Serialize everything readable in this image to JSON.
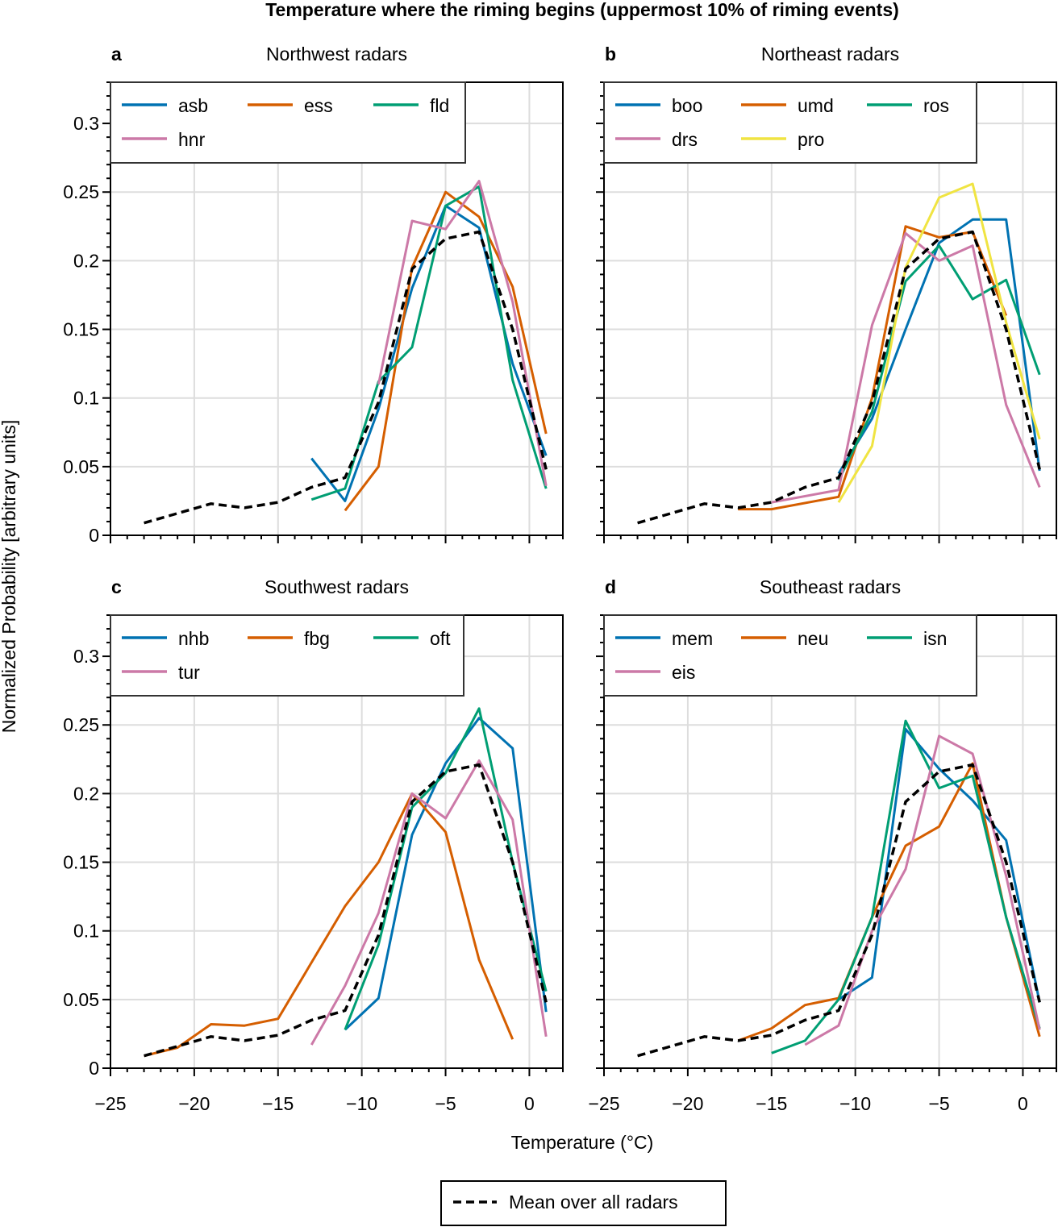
{
  "chart_data": {
    "type": "line",
    "title": "Temperature where the riming begins (uppermost 10% of riming events)",
    "xlabel": "Temperature (°C)",
    "ylabel": "Normalized Probability [arbitrary units]",
    "xlim": [
      -25,
      2
    ],
    "ylim": [
      0,
      0.33
    ],
    "xticks": [
      "−25",
      "−20",
      "−15",
      "−10",
      "−5",
      "0"
    ],
    "xtick_values": [
      -25,
      -20,
      -15,
      -10,
      -5,
      0
    ],
    "yticks": [
      "0",
      "0.05",
      "0.1",
      "0.15",
      "0.2",
      "0.25",
      "0.3"
    ],
    "ytick_values": [
      0,
      0.05,
      0.1,
      0.15,
      0.2,
      0.25,
      0.3
    ],
    "grid": true,
    "mean": {
      "name": "Mean over all radars",
      "color": "#000000",
      "x": [
        -23,
        -21,
        -19,
        -17,
        -15,
        -13,
        -11,
        -9,
        -7,
        -5,
        -3,
        -1,
        1
      ],
      "y": [
        0.009,
        0.016,
        0.023,
        0.02,
        0.024,
        0.035,
        0.042,
        0.097,
        0.194,
        0.216,
        0.221,
        0.15,
        0.048
      ]
    },
    "legend_bottom": "Mean over all radars",
    "panels": [
      {
        "label": "a",
        "title": "Northwest radars",
        "legend_placement": "top-left",
        "series": [
          {
            "name": "asb",
            "color": "#0072B2",
            "x": [
              -13,
              -11,
              -9,
              -7,
              -5,
              -3,
              -1,
              1
            ],
            "y": [
              0.056,
              0.025,
              0.092,
              0.18,
              0.24,
              0.224,
              0.125,
              0.058
            ]
          },
          {
            "name": "ess",
            "color": "#D55E00",
            "x": [
              -11,
              -9,
              -7,
              -5,
              -3,
              -1,
              1
            ],
            "y": [
              0.018,
              0.05,
              0.195,
              0.25,
              0.232,
              0.181,
              0.074
            ]
          },
          {
            "name": "fld",
            "color": "#009E73",
            "x": [
              -13,
              -11,
              -9,
              -7,
              -5,
              -3,
              -1,
              1
            ],
            "y": [
              0.026,
              0.034,
              0.112,
              0.137,
              0.24,
              0.254,
              0.113,
              0.034
            ]
          },
          {
            "name": "hnr",
            "color": "#CC79A7",
            "x": [
              -9,
              -7,
              -5,
              -3,
              -1,
              1
            ],
            "y": [
              0.11,
              0.229,
              0.223,
              0.258,
              0.17,
              0.036
            ]
          }
        ]
      },
      {
        "label": "b",
        "title": "Northeast radars",
        "legend_placement": "top-left",
        "series": [
          {
            "name": "boo",
            "color": "#0072B2",
            "x": [
              -11,
              -9,
              -7,
              -5,
              -3,
              -1,
              1
            ],
            "y": [
              0.045,
              0.085,
              0.15,
              0.213,
              0.23,
              0.23,
              0.047
            ]
          },
          {
            "name": "umd",
            "color": "#D55E00",
            "x": [
              -17,
              -15,
              -11,
              -9,
              -7,
              -5,
              -3,
              -1
            ],
            "y": [
              0.019,
              0.019,
              0.028,
              0.1,
              0.225,
              0.217,
              0.221,
              0.16
            ]
          },
          {
            "name": "ros",
            "color": "#009E73",
            "x": [
              -11,
              -9,
              -7,
              -5,
              -3,
              -1,
              1
            ],
            "y": [
              0.04,
              0.09,
              0.185,
              0.211,
              0.172,
              0.186,
              0.117
            ]
          },
          {
            "name": "drs",
            "color": "#CC79A7",
            "x": [
              -15,
              -11,
              -9,
              -7,
              -5,
              -3,
              -1,
              1
            ],
            "y": [
              0.024,
              0.033,
              0.153,
              0.22,
              0.2,
              0.211,
              0.095,
              0.035
            ]
          },
          {
            "name": "pro",
            "color": "#F0E442",
            "x": [
              -11,
              -9,
              -7,
              -5,
              -3,
              -1,
              1
            ],
            "y": [
              0.024,
              0.065,
              0.195,
              0.246,
              0.256,
              0.155,
              0.07
            ]
          }
        ]
      },
      {
        "label": "c",
        "title": "Southwest radars",
        "legend_placement": "top-left",
        "series": [
          {
            "name": "nhb",
            "color": "#0072B2",
            "x": [
              -11,
              -9,
              -7,
              -5,
              -3,
              -1,
              1
            ],
            "y": [
              0.028,
              0.051,
              0.17,
              0.222,
              0.255,
              0.233,
              0.041
            ]
          },
          {
            "name": "fbg",
            "color": "#D55E00",
            "x": [
              -23,
              -21,
              -19,
              -17,
              -15,
              -13,
              -11,
              -9,
              -7,
              -5,
              -3,
              -1
            ],
            "y": [
              0.009,
              0.015,
              0.032,
              0.031,
              0.036,
              0.077,
              0.118,
              0.15,
              0.2,
              0.172,
              0.079,
              0.021
            ]
          },
          {
            "name": "oft",
            "color": "#009E73",
            "x": [
              -11,
              -9,
              -7,
              -5,
              -3,
              -1,
              1
            ],
            "y": [
              0.028,
              0.09,
              0.19,
              0.215,
              0.262,
              0.15,
              0.056
            ]
          },
          {
            "name": "tur",
            "color": "#CC79A7",
            "x": [
              -13,
              -11,
              -9,
              -7,
              -5,
              -3,
              -1,
              1
            ],
            "y": [
              0.017,
              0.06,
              0.113,
              0.2,
              0.182,
              0.224,
              0.181,
              0.023
            ]
          }
        ]
      },
      {
        "label": "d",
        "title": "Southeast radars",
        "legend_placement": "top-left",
        "series": [
          {
            "name": "mem",
            "color": "#0072B2",
            "x": [
              -11,
              -9,
              -7,
              -5,
              -3,
              -1,
              1
            ],
            "y": [
              0.05,
              0.066,
              0.247,
              0.218,
              0.195,
              0.166,
              0.048
            ]
          },
          {
            "name": "neu",
            "color": "#D55E00",
            "x": [
              -17,
              -15,
              -13,
              -11,
              -9,
              -7,
              -5,
              -3,
              -1,
              1
            ],
            "y": [
              0.02,
              0.029,
              0.046,
              0.051,
              0.11,
              0.162,
              0.176,
              0.222,
              0.11,
              0.023
            ]
          },
          {
            "name": "isn",
            "color": "#009E73",
            "x": [
              -15,
              -13,
              -11,
              -9,
              -7,
              -5,
              -3,
              -1,
              1
            ],
            "y": [
              0.011,
              0.02,
              0.05,
              0.11,
              0.253,
              0.204,
              0.213,
              0.11,
              0.029
            ]
          },
          {
            "name": "eis",
            "color": "#CC79A7",
            "x": [
              -13,
              -11,
              -9,
              -7,
              -5,
              -3,
              -1,
              1
            ],
            "y": [
              0.017,
              0.031,
              0.1,
              0.145,
              0.242,
              0.229,
              0.14,
              0.028
            ]
          }
        ]
      }
    ]
  }
}
